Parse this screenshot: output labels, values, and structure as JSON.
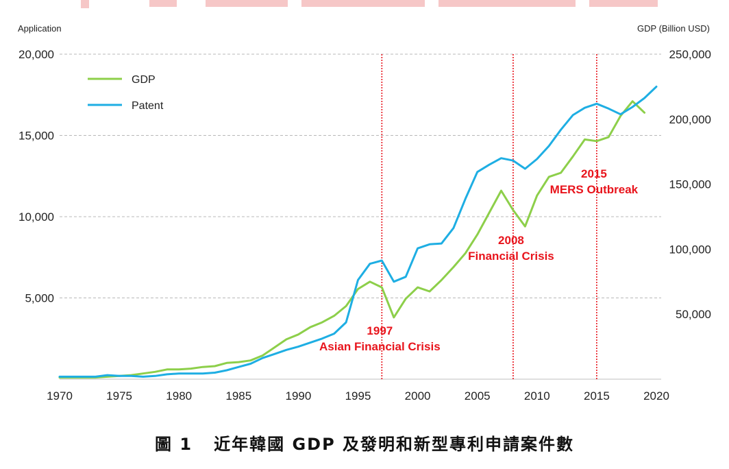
{
  "chart_data": {
    "type": "line",
    "left_axis_label": "Application",
    "right_axis_label": "GDP (Billion USD)",
    "x_range": [
      1970,
      2020
    ],
    "x_ticks": [
      1970,
      1975,
      1980,
      1985,
      1990,
      1995,
      2000,
      2005,
      2010,
      2015,
      2020
    ],
    "left_ylim": [
      0,
      20000
    ],
    "left_ticks": [
      5000,
      10000,
      15000,
      20000
    ],
    "left_tick_labels": [
      "5,000",
      "10,000",
      "15,000",
      "20,000"
    ],
    "right_ylim": [
      0,
      250000
    ],
    "right_ticks": [
      50000,
      100000,
      150000,
      200000,
      250000
    ],
    "right_tick_labels": [
      "50,000",
      "100,000",
      "150,000",
      "200,000",
      "250,000"
    ],
    "grid": "horizontal dashed",
    "legend_position": "top-left",
    "series": [
      {
        "name": "GDP",
        "axis": "left",
        "color": "#8dcf4a",
        "x": [
          1970,
          1971,
          1972,
          1973,
          1974,
          1975,
          1976,
          1977,
          1978,
          1979,
          1980,
          1981,
          1982,
          1983,
          1984,
          1985,
          1986,
          1987,
          1988,
          1989,
          1990,
          1991,
          1992,
          1993,
          1994,
          1995,
          1996,
          1997,
          1998,
          1999,
          2000,
          2001,
          2002,
          2003,
          2004,
          2005,
          2006,
          2007,
          2008,
          2009,
          2010,
          2011,
          2012,
          2013,
          2014,
          2015,
          2016,
          2017,
          2018,
          2019
        ],
        "values": [
          100,
          100,
          100,
          100,
          150,
          200,
          250,
          350,
          450,
          600,
          600,
          650,
          750,
          800,
          1000,
          1050,
          1150,
          1450,
          1950,
          2450,
          2750,
          3200,
          3500,
          3900,
          4500,
          5550,
          6000,
          5650,
          3800,
          4950,
          5650,
          5400,
          6100,
          6900,
          7750,
          8900,
          10250,
          11600,
          10400,
          9400,
          11300,
          12450,
          12700,
          13700,
          14750,
          14650,
          14900,
          16200,
          17100,
          16400
        ]
      },
      {
        "name": "Patent",
        "axis": "left",
        "color": "#1eaee3",
        "x": [
          1970,
          1971,
          1972,
          1973,
          1974,
          1975,
          1976,
          1977,
          1978,
          1979,
          1980,
          1981,
          1982,
          1983,
          1984,
          1985,
          1986,
          1987,
          1988,
          1989,
          1990,
          1991,
          1992,
          1993,
          1994,
          1995,
          1996,
          1997,
          1998,
          1999,
          2000,
          2001,
          2002,
          2003,
          2004,
          2005,
          2006,
          2007,
          2008,
          2009,
          2010,
          2011,
          2012,
          2013,
          2014,
          2015,
          2016,
          2017,
          2018,
          2019,
          2020
        ],
        "values": [
          150,
          150,
          150,
          150,
          250,
          200,
          200,
          150,
          200,
          300,
          350,
          350,
          350,
          400,
          550,
          750,
          950,
          1300,
          1550,
          1800,
          2000,
          2250,
          2500,
          2800,
          3500,
          6100,
          7100,
          7300,
          6000,
          6300,
          8050,
          8300,
          8350,
          9300,
          11100,
          12750,
          13200,
          13600,
          13450,
          12950,
          13550,
          14350,
          15350,
          16250,
          16700,
          16950,
          16650,
          16300,
          16750,
          17300,
          18000
        ]
      }
    ],
    "annotations": [
      {
        "x": 1997,
        "year_label": "1997",
        "label": "Asian Financial Crisis"
      },
      {
        "x": 2008,
        "year_label": "2008",
        "label": "Financial Crisis"
      },
      {
        "x": 2015,
        "year_label": "2015",
        "label": "MERS Outbreak"
      }
    ]
  },
  "caption": {
    "figure_label": "圖 1",
    "text": "近年韓國 GDP 及發明和新型專利申請案件數"
  }
}
